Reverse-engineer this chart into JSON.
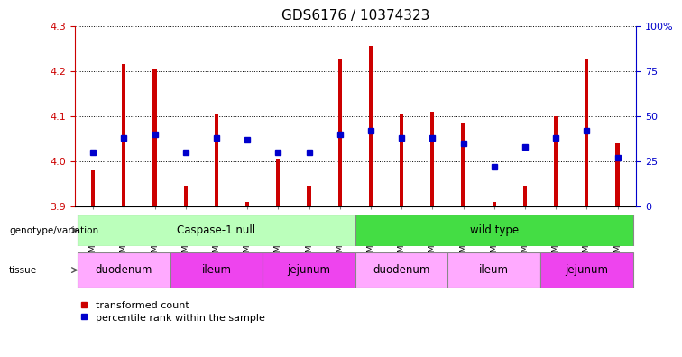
{
  "title": "GDS6176 / 10374323",
  "samples": [
    "GSM805240",
    "GSM805241",
    "GSM805252",
    "GSM805249",
    "GSM805250",
    "GSM805251",
    "GSM805244",
    "GSM805245",
    "GSM805246",
    "GSM805237",
    "GSM805238",
    "GSM805239",
    "GSM805247",
    "GSM805248",
    "GSM805254",
    "GSM805242",
    "GSM805243",
    "GSM805253"
  ],
  "red_values": [
    3.98,
    4.215,
    4.205,
    3.945,
    4.105,
    3.91,
    4.005,
    3.945,
    4.225,
    4.255,
    4.105,
    4.11,
    4.085,
    3.91,
    3.945,
    4.1,
    4.225,
    4.04
  ],
  "blue_percentiles": [
    30,
    38,
    40,
    30,
    38,
    37,
    30,
    30,
    40,
    42,
    38,
    38,
    35,
    22,
    33,
    38,
    42,
    27
  ],
  "y_min": 3.9,
  "y_max": 4.3,
  "y_ticks_left": [
    3.9,
    4.0,
    4.1,
    4.2,
    4.3
  ],
  "y_ticks_right": [
    0,
    25,
    50,
    75,
    100
  ],
  "bar_color": "#cc0000",
  "dot_color": "#0000cc",
  "genotype_groups": [
    {
      "label": "Caspase-1 null",
      "start": 0,
      "end": 9,
      "color": "#bbffbb"
    },
    {
      "label": "wild type",
      "start": 9,
      "end": 18,
      "color": "#44dd44"
    }
  ],
  "tissue_groups": [
    {
      "label": "duodenum",
      "start": 0,
      "end": 3,
      "color": "#ffaaff"
    },
    {
      "label": "ileum",
      "start": 3,
      "end": 6,
      "color": "#ee44ee"
    },
    {
      "label": "jejunum",
      "start": 6,
      "end": 9,
      "color": "#ee44ee"
    },
    {
      "label": "duodenum",
      "start": 9,
      "end": 12,
      "color": "#ffaaff"
    },
    {
      "label": "ileum",
      "start": 12,
      "end": 15,
      "color": "#ffaaff"
    },
    {
      "label": "jejunum",
      "start": 15,
      "end": 18,
      "color": "#ee44ee"
    }
  ],
  "legend_red": "transformed count",
  "legend_blue": "percentile rank within the sample",
  "genotype_label": "genotype/variation",
  "tissue_label": "tissue",
  "left_color": "#cc0000",
  "right_color": "#0000cc"
}
